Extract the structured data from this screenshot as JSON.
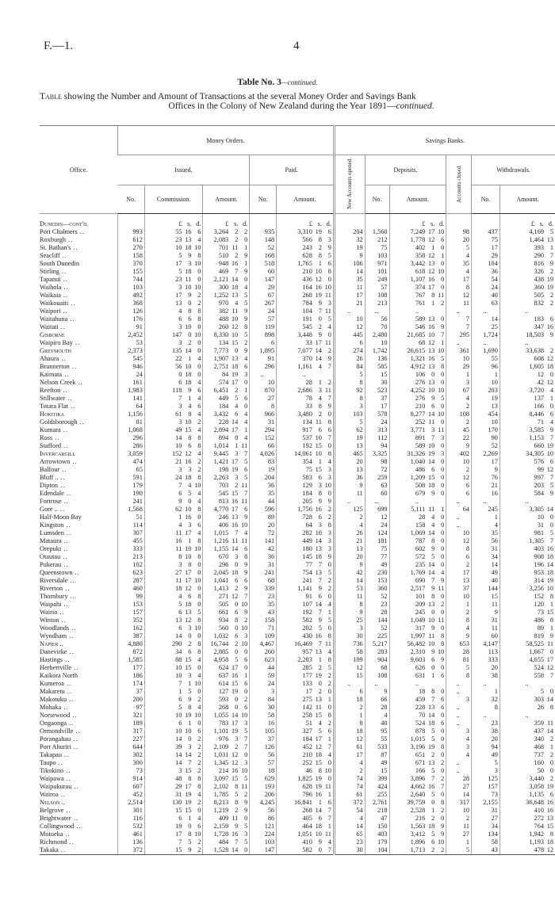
{
  "page": {
    "ref": "F.—1.",
    "number": "4"
  },
  "title": {
    "main": "Table No. 3",
    "main_suffix": "—continued.",
    "line1_lead": "Table",
    "line1": " showing the Number and Amount of Transactions at the several Money Order and Savings Bank",
    "line2": "Offices in the Colony of New Zealand during the Year 1891—",
    "line2_suffix": "continued."
  },
  "header": {
    "office": "Office.",
    "money_orders": "Money Orders.",
    "savings_banks": "Savings Banks.",
    "issued": "Issued.",
    "paid": "Paid.",
    "new_accounts": "New Accounts opened.",
    "deposits": "Deposits.",
    "accounts_closed": "Accounts closed.",
    "withdrawals": "Withdrawals.",
    "no": "No.",
    "commission": "Commission.",
    "amount": "Amount."
  },
  "units": [
    "£",
    "s.",
    "d."
  ],
  "first_section": "Dunedin—cont'd.",
  "rows": [
    [
      "Port Chalmers",
      "o",
      "993",
      "55 16 6",
      "3,264 2 2",
      "935",
      "3,310 19 6",
      "204",
      "1,560",
      "7,249 17 10",
      "98",
      "437",
      "4,169 5"
    ],
    [
      "Roxburgh",
      "o",
      "612",
      "23 13 4",
      "2,083 2 0",
      "148",
      "566 8 3",
      "32",
      "212",
      "1,778 12 6",
      "20",
      "75",
      "1,464 13"
    ],
    [
      "St. Bathan's",
      "o",
      "270",
      "10 18 10",
      "701 11 1",
      "52",
      "243 2 9",
      "19",
      "75",
      "402 1 0",
      "5",
      "17",
      "393 1"
    ],
    [
      "Seacliff",
      "o",
      "158",
      "5 9 8",
      "510 2 9",
      "168",
      "628 8 5",
      "9",
      "103",
      "358 12 1",
      "4",
      "29",
      "290 7"
    ],
    [
      "South Dunedin",
      "n",
      "370",
      "17 3 10",
      "948 16 1",
      "518",
      "1,765 1 6",
      "106",
      "971",
      "3,442 13 0",
      "35",
      "104",
      "816 9"
    ],
    [
      "Stirling",
      "o",
      "155",
      "5 18 0",
      "469 7 9",
      "60",
      "210 10 8",
      "14",
      "101",
      "618 12 10",
      "4",
      "36",
      "326 2"
    ],
    [
      "Tapanui",
      "o",
      "744",
      "23 11 0",
      "2,121 14 0",
      "147",
      "436 12 0",
      "35",
      "249",
      "1,107 16 0",
      "17",
      "54",
      "438 19"
    ],
    [
      "Waihola",
      "o",
      "103",
      "3 10 10",
      "300 18 4",
      "29",
      "164 16 10",
      "11",
      "57",
      "374 17 0",
      "8",
      "24",
      "360 19"
    ],
    [
      "Waikaia",
      "o",
      "492",
      "17 9 2",
      "1,252 13 5",
      "67",
      "268 19 11",
      "17",
      "108",
      "767 8 11",
      "12",
      "40",
      "505 2"
    ],
    [
      "Waikouaiti",
      "o",
      "368",
      "13 0 2",
      "970 4 5",
      "267",
      "784 9 3",
      "21",
      "213",
      "761 1 2",
      "11",
      "63",
      "832 2"
    ],
    [
      "Waipori",
      "o",
      "126",
      "4 8 8",
      "382 11 9",
      "24",
      "104 7 11",
      "..",
      "..",
      "..",
      "..",
      "..",
      ".."
    ],
    [
      "Waitahuna",
      "o",
      "176",
      "6 6 8",
      "488 10 9",
      "57",
      "191 0 5",
      "10",
      "56",
      "589 13 0",
      "7",
      "14",
      "183 6"
    ],
    [
      "Waitati",
      "o",
      "91",
      "3 10 0",
      "260 12 8",
      "119",
      "545 2 4",
      "12",
      "70",
      "546 16 9",
      "7",
      "25",
      "347 16"
    ],
    [
      "Gisborne",
      "s",
      "2,452",
      "147 0 10",
      "8,330 10 5",
      "898",
      "3,448 9 0",
      "445",
      "2,480",
      "21,685 10 7",
      "295",
      "1,724",
      "18,503 9"
    ],
    [
      "Waipiro Bay",
      "o",
      "53",
      "3 2 0",
      "134 15 2",
      "6",
      "33 17 11",
      "6",
      "10",
      "68 12 1",
      "..",
      "..",
      ".."
    ],
    [
      "Greymouth",
      "s",
      "2,373",
      "135 14 0",
      "7,773 0 9",
      "1,895",
      "7,077 14 2",
      "274",
      "1,742",
      "26,615 13 10",
      "361",
      "1,690",
      "33,638 2"
    ],
    [
      "Ahaura",
      "o",
      "545",
      "22 1 4",
      "1,907 13 4",
      "91",
      "370 14 9",
      "26",
      "136",
      "1,321 16 5",
      "10",
      "55",
      "608 12"
    ],
    [
      "Brunnerton",
      "o",
      "946",
      "56 10 0",
      "2,751 18 6",
      "296",
      "1,161 4 7",
      "84",
      "585",
      "4,912 13 8",
      "29",
      "96",
      "1,605 18"
    ],
    [
      "Kaimata",
      "o",
      "24",
      "0 18 0",
      "84 19 3",
      "..",
      "..",
      "5",
      "15",
      "106 0 0",
      "1",
      "1",
      "12 0"
    ],
    [
      "Nelson Creek",
      "o",
      "161",
      "6 18 4",
      "574 17 0",
      "10",
      "28 1 2",
      "8",
      "30",
      "276 13 0",
      "3",
      "10",
      "42 12"
    ],
    [
      "Reefton",
      "o",
      "1,983",
      "118 9 6",
      "6,451 2 1",
      "870",
      "2,686 3 11",
      "92",
      "523",
      "4,252 10 10",
      "67",
      "203",
      "3,720 4"
    ],
    [
      "Stillwater",
      "o",
      "141",
      "7 1 4",
      "449 5 6",
      "27",
      "78 4 7",
      "8",
      "37",
      "276 9 5",
      "4",
      "19",
      "137 1"
    ],
    [
      "Totara Flat",
      "o",
      "64",
      "3 4 6",
      "184 4 0",
      "8",
      "33 8 9",
      "3",
      "17",
      "210 6 0",
      "2",
      "13",
      "166 0"
    ],
    [
      "Hokitika",
      "s",
      "1,156",
      "61 8 4",
      "3,432 6 4",
      "966",
      "3,480 2 0",
      "103",
      "578",
      "8,277 14 10",
      "108",
      "454",
      "8,446 6"
    ],
    [
      "Goldsborough",
      "o",
      "81",
      "3 10 2",
      "228 14 4",
      "31",
      "134 11 8",
      "5",
      "24",
      "252 11 0",
      "2",
      "10",
      "71 4"
    ],
    [
      "Kumara",
      "o",
      "1,068",
      "49 15 4",
      "2,894 17 1",
      "294",
      "917 6 6",
      "62",
      "313",
      "3,771 3 11",
      "45",
      "170",
      "3,585 9"
    ],
    [
      "Ross",
      "o",
      "296",
      "14 8 8",
      "894 8 4",
      "152",
      "537 10 7",
      "19",
      "112",
      "891 7 3",
      "22",
      "90",
      "1,153 7"
    ],
    [
      "Stafford",
      "o",
      "286",
      "10 6 8",
      "1,014 1 11",
      "66",
      "192 15 0",
      "13",
      "94",
      "589 10 0",
      "9",
      "52",
      "660 19"
    ],
    [
      "Invercargill",
      "s",
      "3,059",
      "152 12 4",
      "9,445 3 7",
      "4,026",
      "14,061 10 8",
      "465",
      "3,325",
      "31,326 19 3",
      "402",
      "2,269",
      "34,305 10"
    ],
    [
      "Arrowtown",
      "o",
      "474",
      "21 16 2",
      "1,421 17 5",
      "83",
      "354 1 4",
      "20",
      "98",
      "1,040 14 0",
      "10",
      "17",
      "576 6"
    ],
    [
      "Balfour",
      "o",
      "65",
      "3 3 2",
      "198 19 6",
      "19",
      "75 15 3",
      "13",
      "72",
      "486 6 0",
      "2",
      "9",
      "99 12"
    ],
    [
      "Bluff ..",
      "o",
      "591",
      "24 18 8",
      "2,263 3 5",
      "204",
      "583 6 3",
      "36",
      "259",
      "1,209 15 0",
      "12",
      "76",
      "997 7"
    ],
    [
      "Dipton",
      "o",
      "179",
      "7 4 10",
      "703 2 11",
      "36",
      "129 3 10",
      "9",
      "63",
      "508 18 0",
      "6",
      "21",
      "203 5"
    ],
    [
      "Edendale",
      "o",
      "190",
      "6 5 4",
      "545 15 7",
      "35",
      "184 8 0",
      "11",
      "60",
      "679 9 0",
      "6",
      "16",
      "584 9"
    ],
    [
      "Fortrose",
      "o",
      "241",
      "9 0 4",
      "813 16 11",
      "44",
      "205 9 9",
      "..",
      "..",
      "..",
      "..",
      "..",
      ".."
    ],
    [
      "Gore ..",
      "o",
      "1,568",
      "62 10 8",
      "4,770 17 6",
      "596",
      "1,756 16 2",
      "125",
      "699",
      "5,111 11 1",
      "64",
      "245",
      "3,305 14"
    ],
    [
      "Half-Moon Bay",
      "n",
      "51",
      "1 16 0",
      "246 13 9",
      "89",
      "728 6 2",
      "2",
      "12",
      "28 4 0",
      "..",
      "1",
      "10 0"
    ],
    [
      "Kingston",
      "o",
      "114",
      "4 3 6",
      "406 16 10",
      "20",
      "64 3 8",
      "4",
      "24",
      "158 4 0",
      "..",
      "4",
      "31 0"
    ],
    [
      "Lumsden",
      "o",
      "307",
      "11 17 4",
      "1,015 7 4",
      "72",
      "282 10 3",
      "26",
      "124",
      "1,069 14 0",
      "10",
      "35",
      "981 5"
    ],
    [
      "Mataura",
      "o",
      "455",
      "16 1 8",
      "1,216 11 11",
      "141",
      "449 14 3",
      "21",
      "181",
      "787 8 0",
      "12",
      "56",
      "1,305 7"
    ],
    [
      "Orepuki",
      "o",
      "333",
      "11 10 10",
      "1,155 14 6",
      "42",
      "180 13 3",
      "13",
      "75",
      "602 9 0",
      "8",
      "31",
      "403 16"
    ],
    [
      "Otautau",
      "o",
      "213",
      "8 10 8",
      "670 3 8",
      "36",
      "145 18 9",
      "20",
      "77",
      "572 5 0",
      "6",
      "34",
      "908 18"
    ],
    [
      "Pukerau",
      "o",
      "102",
      "3 8 0",
      "296 0 9",
      "31",
      "77 7 0",
      "9",
      "49",
      "235 14 0",
      "2",
      "14",
      "196 14"
    ],
    [
      "Queenstown",
      "o",
      "623",
      "27 17 0",
      "2,045 18 9",
      "241",
      "754 13 5",
      "42",
      "230",
      "1,769 14 4",
      "17",
      "49",
      "953 18"
    ],
    [
      "Riversdale",
      "o",
      "287",
      "11 17 10",
      "1,041 6 6",
      "68",
      "241 7 2",
      "14",
      "153",
      "690 7 9",
      "13",
      "40",
      "314 19"
    ],
    [
      "Riverton",
      "o",
      "460",
      "18 12 0",
      "1,413 2 9",
      "339",
      "1,141 9 2",
      "53",
      "360",
      "2,517 9 11",
      "37",
      "144",
      "3,256 10"
    ],
    [
      "Thornbury",
      "o",
      "99",
      "4 6 8",
      "271 12 7",
      "23",
      "91 6 0",
      "11",
      "52",
      "101 8 0",
      "10",
      "15",
      "152 8"
    ],
    [
      "Waipahi",
      "o",
      "153",
      "5 18 0",
      "505 0 10",
      "35",
      "107 14 4",
      "8",
      "23",
      "209 13 2",
      "1",
      "11",
      "120 1"
    ],
    [
      "Wairio",
      "o",
      "157",
      "6 13 5",
      "661 6 9",
      "43",
      "192 7 1",
      "9",
      "28",
      "245 0 0",
      "2",
      "9",
      "73 15"
    ],
    [
      "Winton",
      "o",
      "352",
      "13 12 8",
      "934 8 2",
      "158",
      "582 9 5",
      "25",
      "144",
      "1,049 10 11",
      "8",
      "31",
      "486 8"
    ],
    [
      "Woodlands",
      "o",
      "162",
      "6 3 10",
      "560 0 10",
      "71",
      "202 5 0",
      "3",
      "52",
      "317 9 0",
      "4",
      "11",
      "89 1"
    ],
    [
      "Wyndham",
      "o",
      "387",
      "14 0 0",
      "1,032 6 3",
      "109",
      "430 16 8",
      "30",
      "225",
      "1,997 11 8",
      "9",
      "60",
      "819 9"
    ],
    [
      "Napier ..",
      "s",
      "4,880",
      "290 2 8",
      "16,744 2 10",
      "4,467",
      "16,469 7 11",
      "736",
      "5,217",
      "56,482 10 8",
      "653",
      "4,147",
      "58,525 11"
    ],
    [
      "Danevirke",
      "o",
      "872",
      "34 6 8",
      "2,885 0 0",
      "260",
      "957 13 4",
      "58",
      "283",
      "2,310 9 10",
      "28",
      "113",
      "1,667 0"
    ],
    [
      "Hastings",
      "o",
      "1,585",
      "88 15 4",
      "4,958 5 6",
      "623",
      "2,283 1 8",
      "189",
      "904",
      "9,603 6 9",
      "81",
      "333",
      "4,655 17"
    ],
    [
      "Herbertville",
      "o",
      "177",
      "10 15 0",
      "624 17 0",
      "44",
      "285 2 5",
      "12",
      "68",
      "626 0 0",
      "5",
      "20",
      "524 12"
    ],
    [
      "Kaikora North",
      "n",
      "186",
      "10 3 4",
      "637 16 1",
      "59",
      "177 19 2",
      "15",
      "108",
      "631 1 6",
      "8",
      "38",
      "558 7"
    ],
    [
      "Kumeroa",
      "o",
      "174",
      "7 1 10",
      "614 15 6",
      "24",
      "133 0 2",
      "..",
      "..",
      "..",
      "..",
      "..",
      ".."
    ],
    [
      "Makaretu",
      "o",
      "37",
      "1 5 0",
      "127 19 0",
      "3",
      "17 2 0",
      "6",
      "9",
      "18 8 0",
      "..",
      "1",
      "5 0"
    ],
    [
      "Makotuku",
      "o",
      "200",
      "6 9 2",
      "593 0 2",
      "84",
      "275 13 1",
      "18",
      "66",
      "459 7 6",
      "3",
      "32",
      "303 14"
    ],
    [
      "Mohaka",
      "o",
      "97",
      "5 8 4",
      "268 0 6",
      "30",
      "142 11 0",
      "2",
      "28",
      "228 13 6",
      "..",
      "8",
      "26 8"
    ],
    [
      "Norsewood",
      "o",
      "321",
      "10 19 10",
      "1,055 14 10",
      "58",
      "258 15 8",
      "1",
      "4",
      "70 14 0",
      "..",
      "..",
      ".."
    ],
    [
      "Ongaonga",
      "o",
      "189",
      "6 1 0",
      "783 17 3",
      "16",
      "51 4 2",
      "8",
      "40",
      "524 18 6",
      "..",
      "23",
      "359 11"
    ],
    [
      "Ormondville",
      "o",
      "317",
      "10 10 6",
      "1,101 19 5",
      "105",
      "327 5 6",
      "18",
      "95",
      "878 5 0",
      "3",
      "38",
      "437 14"
    ],
    [
      "Porangahau",
      "o",
      "227",
      "14 0 2",
      "976 3 7",
      "37",
      "184 17 1",
      "12",
      "55",
      "1,015 5 0",
      "4",
      "20",
      "340 2"
    ],
    [
      "Port Ahuriri",
      "o",
      "644",
      "39 3 2",
      "2,109 2 7",
      "126",
      "452 12 7",
      "61",
      "533",
      "3,196 19 8",
      "3",
      "94",
      "468 1"
    ],
    [
      "Takapau",
      "o",
      "302",
      "14 14 2",
      "1,031 12 0",
      "56",
      "210 18 4",
      "17",
      "87",
      "651 2 0",
      "4",
      "49",
      "737 2"
    ],
    [
      "Taupo",
      "o",
      "300",
      "14 7 2",
      "1,345 12 3",
      "57",
      "252 15 0",
      "4",
      "49",
      "671 13 2",
      "..",
      "5",
      "160 0"
    ],
    [
      "Tikokino",
      "o",
      "73",
      "3 15 2",
      "214 16 10",
      "18",
      "46 8 10",
      "2",
      "15",
      "166 5 0",
      "..",
      "3",
      "50 0"
    ],
    [
      "Waipawa",
      "o",
      "914",
      "48 8 8",
      "3,097 15 5",
      "629",
      "1,825 19 0",
      "74",
      "399",
      "3,896 7 2",
      "28",
      "125",
      "3,440 2"
    ],
    [
      "Waipukurau",
      "o",
      "607",
      "29 17 8",
      "2,102 8 11",
      "193",
      "628 19 11",
      "74",
      "424",
      "4,662 16 7",
      "27",
      "157",
      "3,058 19"
    ],
    [
      "Wairoa",
      "o",
      "452",
      "31 19 4",
      "1,785 5 2",
      "206",
      "796 16 1",
      "61",
      "255",
      "2,640 5 0",
      "14",
      "73",
      "1,135 6"
    ],
    [
      "Nelson ..",
      "s",
      "2,514",
      "130 19 2",
      "8,213 8 9",
      "4,245",
      "16,841 1 6",
      "372",
      "2,761",
      "39,759 0 8",
      "317",
      "2,155",
      "36,648 16"
    ],
    [
      "Belgrove",
      "o",
      "301",
      "15 15 0",
      "1,219 2 9",
      "56",
      "268 14 7",
      "54",
      "218",
      "2,528 1 2",
      "10",
      "31",
      "410 16"
    ],
    [
      "Brightwater",
      "o",
      "116",
      "6 1 4",
      "409 11 0",
      "86",
      "405 6 7",
      "4",
      "47",
      "216 2 0",
      "2",
      "27",
      "272 13"
    ],
    [
      "Collingwood",
      "o",
      "532",
      "19 0 6",
      "2,159 9 5",
      "121",
      "464 18 1",
      "14",
      "150",
      "1,563 18 9",
      "11",
      "34",
      "764 15"
    ],
    [
      "Motueka",
      "o",
      "461",
      "17 8 10",
      "1,728 16 3",
      "224",
      "1,051 10 11",
      "65",
      "403",
      "3,412 5 9",
      "27",
      "134",
      "1,942 8"
    ],
    [
      "Richmond",
      "o",
      "136",
      "7 5 2",
      "484 7 5",
      "103",
      "410 9 4",
      "23",
      "179",
      "1,896 6 10",
      "1",
      "58",
      "1,193 18"
    ],
    [
      "Takaka",
      "o",
      "372",
      "15 9 2",
      "1,528 14 0",
      "147",
      "582 0 7",
      "30",
      "104",
      "1,713 2 2",
      "5",
      "43",
      "478 12"
    ]
  ]
}
